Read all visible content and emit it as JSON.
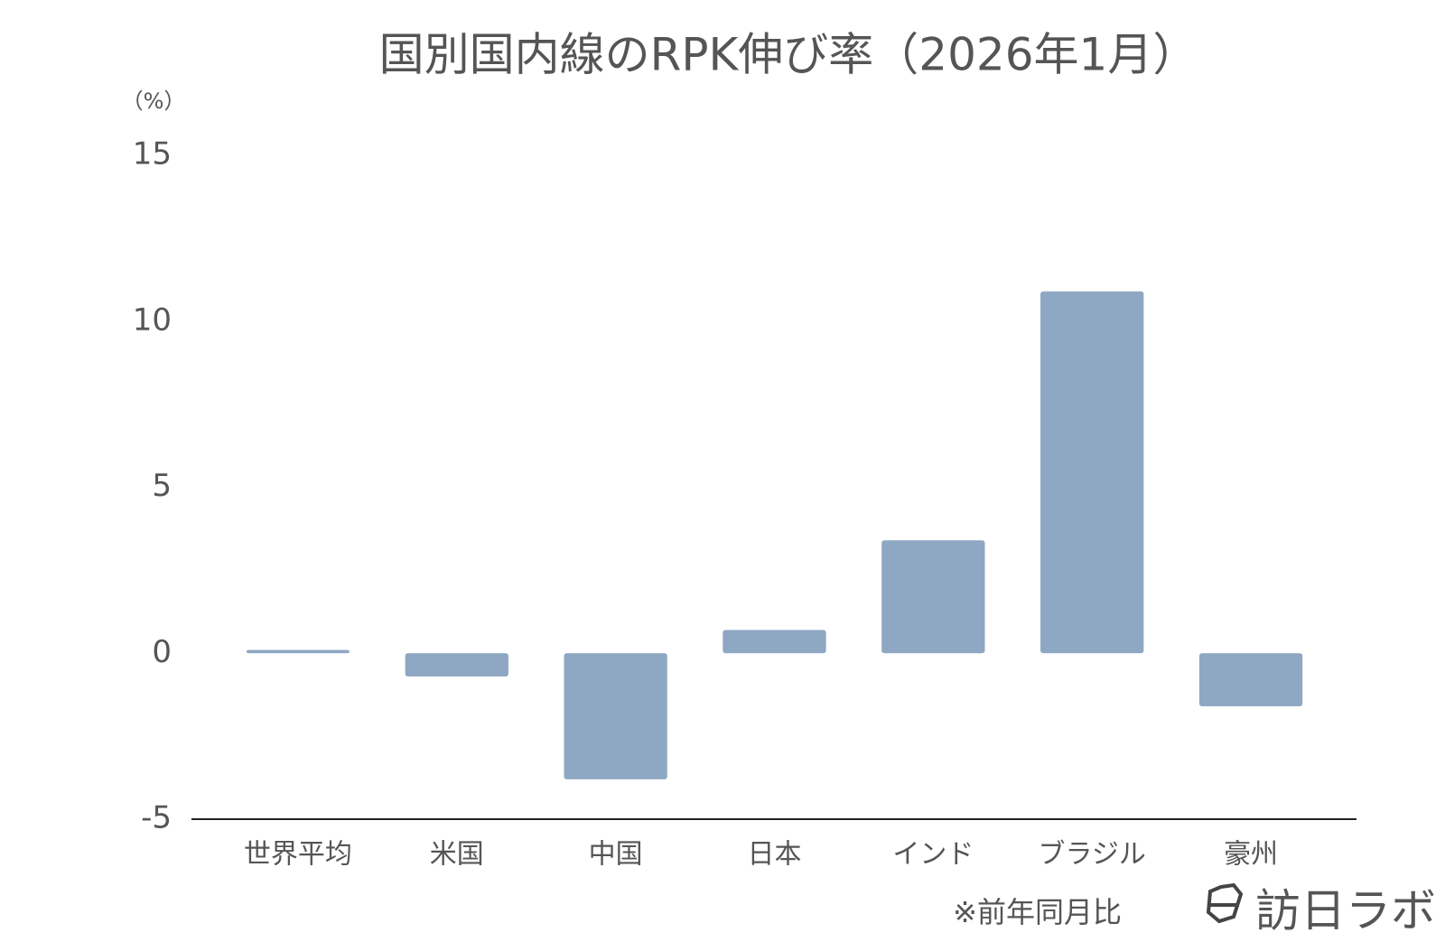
{
  "chart_data": {
    "type": "bar",
    "title": "国別国内線のRPK伸び率（2026年1月）",
    "y_label": "（%）",
    "categories": [
      "世界平均",
      "米国",
      "中国",
      "日本",
      "インド",
      "ブラジル",
      "豪州"
    ],
    "values": [
      0.1,
      -0.7,
      -3.8,
      0.7,
      3.4,
      10.9,
      -1.6
    ],
    "color": "#8ea7c2",
    "ylim": [
      -5,
      15
    ],
    "yticks": [
      -5,
      0,
      5,
      10,
      15
    ],
    "grid": false,
    "note": "※前年同月比",
    "logo": "訪日ラボ"
  }
}
